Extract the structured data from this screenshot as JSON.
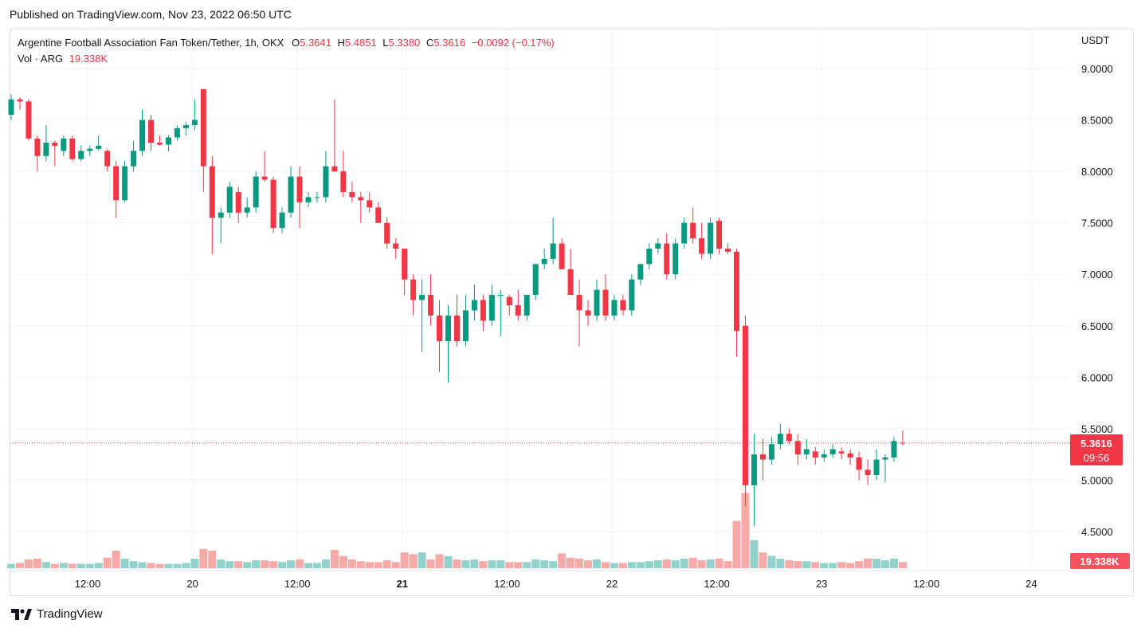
{
  "header": {
    "published": "Published on TradingView.com, Nov 23, 2022 06:50 UTC"
  },
  "legend": {
    "symbol": "Argentine Football Association Fan Token/Tether, 1h, OKX",
    "o_label": "O",
    "o_value": "5.3641",
    "h_label": "H",
    "h_value": "5.4851",
    "l_label": "L",
    "l_value": "5.3380",
    "c_label": "C",
    "c_value": "5.3616",
    "change": "−0.0092 (−0.17%)",
    "vol_label": "Vol · ARG",
    "vol_value": "19.338K"
  },
  "footer": {
    "brand": "TradingView"
  },
  "colors": {
    "up": "#089981",
    "down": "#f23645",
    "up_vol": "#92d2cc",
    "down_vol": "#f7a9a7",
    "grid": "#f0f3fa"
  },
  "chart_data": {
    "type": "candlestick",
    "currency": "USDT",
    "ylim": [
      4.2,
      9.3
    ],
    "y_ticks": [
      "9.0000",
      "8.5000",
      "8.0000",
      "7.5000",
      "7.0000",
      "6.5000",
      "6.0000",
      "5.5000",
      "5.0000",
      "4.5000"
    ],
    "x_ticks": [
      "12:00",
      "20",
      "12:00",
      "21",
      "12:00",
      "22",
      "12:00",
      "23",
      "12:00",
      "24"
    ],
    "last_price": "5.3616",
    "countdown": "09:56",
    "last_volume": "19.338K",
    "candles": [
      [
        8.55,
        8.75,
        8.5,
        8.7
      ],
      [
        8.7,
        8.72,
        8.6,
        8.68
      ],
      [
        8.68,
        8.7,
        8.3,
        8.32
      ],
      [
        8.32,
        8.35,
        8.0,
        8.15
      ],
      [
        8.15,
        8.45,
        8.1,
        8.28
      ],
      [
        8.28,
        8.3,
        8.05,
        8.25
      ],
      [
        8.2,
        8.35,
        8.15,
        8.32
      ],
      [
        8.32,
        8.35,
        8.1,
        8.12
      ],
      [
        8.12,
        8.25,
        8.1,
        8.2
      ],
      [
        8.2,
        8.25,
        8.15,
        8.22
      ],
      [
        8.22,
        8.35,
        8.2,
        8.25
      ],
      [
        8.2,
        8.22,
        8.0,
        8.05
      ],
      [
        8.05,
        8.1,
        7.55,
        7.72
      ],
      [
        7.72,
        8.1,
        7.7,
        8.05
      ],
      [
        8.05,
        8.3,
        8.0,
        8.2
      ],
      [
        8.2,
        8.6,
        8.15,
        8.5
      ],
      [
        8.5,
        8.55,
        8.2,
        8.28
      ],
      [
        8.28,
        8.35,
        8.25,
        8.26
      ],
      [
        8.26,
        8.35,
        8.2,
        8.33
      ],
      [
        8.33,
        8.45,
        8.3,
        8.42
      ],
      [
        8.42,
        8.48,
        8.35,
        8.45
      ],
      [
        8.45,
        8.7,
        8.4,
        8.5
      ],
      [
        8.8,
        8.8,
        7.8,
        8.05
      ],
      [
        8.05,
        8.15,
        7.2,
        7.55
      ],
      [
        7.55,
        7.65,
        7.3,
        7.6
      ],
      [
        7.6,
        7.9,
        7.55,
        7.85
      ],
      [
        7.8,
        7.85,
        7.5,
        7.6
      ],
      [
        7.6,
        7.75,
        7.55,
        7.65
      ],
      [
        7.65,
        8.0,
        7.6,
        7.95
      ],
      [
        7.95,
        8.2,
        7.9,
        7.92
      ],
      [
        7.92,
        7.95,
        7.4,
        7.45
      ],
      [
        7.45,
        7.65,
        7.4,
        7.6
      ],
      [
        7.6,
        8.05,
        7.55,
        7.95
      ],
      [
        7.95,
        8.05,
        7.45,
        7.7
      ],
      [
        7.7,
        7.8,
        7.65,
        7.75
      ],
      [
        7.75,
        7.8,
        7.7,
        7.75
      ],
      [
        7.75,
        8.2,
        7.7,
        8.05
      ],
      [
        8.05,
        8.7,
        8.0,
        8.0
      ],
      [
        8.0,
        8.2,
        7.75,
        7.8
      ],
      [
        7.8,
        7.9,
        7.7,
        7.75
      ],
      [
        7.75,
        7.8,
        7.5,
        7.72
      ],
      [
        7.72,
        7.8,
        7.6,
        7.65
      ],
      [
        7.65,
        7.7,
        7.5,
        7.5
      ],
      [
        7.5,
        7.55,
        7.25,
        7.3
      ],
      [
        7.3,
        7.35,
        7.15,
        7.25
      ],
      [
        7.25,
        7.25,
        6.8,
        6.95
      ],
      [
        6.95,
        7.0,
        6.6,
        6.75
      ],
      [
        6.75,
        6.95,
        6.25,
        6.8
      ],
      [
        6.8,
        7.0,
        6.5,
        6.6
      ],
      [
        6.6,
        6.75,
        6.05,
        6.35
      ],
      [
        6.35,
        6.7,
        5.95,
        6.6
      ],
      [
        6.6,
        6.8,
        6.3,
        6.35
      ],
      [
        6.35,
        6.8,
        6.3,
        6.65
      ],
      [
        6.65,
        6.9,
        6.55,
        6.75
      ],
      [
        6.75,
        6.8,
        6.45,
        6.55
      ],
      [
        6.55,
        6.9,
        6.5,
        6.8
      ],
      [
        6.8,
        6.85,
        6.4,
        6.8
      ],
      [
        6.78,
        6.8,
        6.6,
        6.7
      ],
      [
        6.7,
        6.85,
        6.55,
        6.6
      ],
      [
        6.6,
        6.8,
        6.55,
        6.8
      ],
      [
        6.8,
        7.1,
        6.75,
        7.1
      ],
      [
        7.1,
        7.25,
        7.05,
        7.15
      ],
      [
        7.15,
        7.55,
        7.1,
        7.3
      ],
      [
        7.3,
        7.35,
        7.05,
        7.05
      ],
      [
        7.05,
        7.25,
        6.8,
        6.8
      ],
      [
        6.8,
        6.95,
        6.3,
        6.65
      ],
      [
        6.65,
        6.75,
        6.5,
        6.6
      ],
      [
        6.6,
        6.95,
        6.55,
        6.85
      ],
      [
        6.85,
        7.0,
        6.55,
        6.6
      ],
      [
        6.6,
        6.8,
        6.55,
        6.75
      ],
      [
        6.75,
        6.8,
        6.6,
        6.65
      ],
      [
        6.65,
        7.0,
        6.6,
        6.95
      ],
      [
        6.95,
        7.1,
        6.9,
        7.1
      ],
      [
        7.1,
        7.3,
        7.05,
        7.25
      ],
      [
        7.25,
        7.35,
        7.2,
        7.3
      ],
      [
        7.3,
        7.4,
        6.95,
        7.0
      ],
      [
        7.0,
        7.35,
        6.95,
        7.3
      ],
      [
        7.3,
        7.55,
        7.25,
        7.5
      ],
      [
        7.5,
        7.65,
        7.3,
        7.35
      ],
      [
        7.35,
        7.5,
        7.15,
        7.2
      ],
      [
        7.2,
        7.55,
        7.15,
        7.5
      ],
      [
        7.52,
        7.55,
        7.2,
        7.25
      ],
      [
        7.25,
        7.3,
        7.2,
        7.22
      ],
      [
        7.22,
        7.25,
        6.2,
        6.45
      ],
      [
        6.5,
        6.6,
        4.75,
        4.95
      ],
      [
        4.95,
        5.45,
        4.55,
        5.25
      ],
      [
        5.25,
        5.4,
        5.0,
        5.2
      ],
      [
        5.2,
        5.42,
        5.15,
        5.35
      ],
      [
        5.35,
        5.55,
        5.3,
        5.45
      ],
      [
        5.45,
        5.5,
        5.35,
        5.38
      ],
      [
        5.38,
        5.45,
        5.15,
        5.25
      ],
      [
        5.25,
        5.4,
        5.2,
        5.3
      ],
      [
        5.28,
        5.32,
        5.15,
        5.22
      ],
      [
        5.22,
        5.3,
        5.18,
        5.25
      ],
      [
        5.25,
        5.35,
        5.22,
        5.3
      ],
      [
        5.28,
        5.32,
        5.2,
        5.26
      ],
      [
        5.26,
        5.3,
        5.15,
        5.22
      ],
      [
        5.22,
        5.28,
        5.0,
        5.1
      ],
      [
        5.1,
        5.2,
        4.95,
        5.05
      ],
      [
        5.05,
        5.3,
        5.0,
        5.2
      ],
      [
        5.2,
        5.25,
        4.98,
        5.22
      ],
      [
        5.22,
        5.42,
        5.18,
        5.38
      ],
      [
        5.3641,
        5.4851,
        5.338,
        5.3616
      ]
    ],
    "volumes": [
      0.25,
      0.3,
      0.5,
      0.55,
      0.35,
      0.25,
      0.3,
      0.25,
      0.25,
      0.25,
      0.3,
      0.6,
      1.0,
      0.55,
      0.4,
      0.35,
      0.3,
      0.25,
      0.25,
      0.25,
      0.3,
      0.55,
      1.1,
      1.0,
      0.5,
      0.4,
      0.4,
      0.35,
      0.45,
      0.45,
      0.4,
      0.35,
      0.45,
      0.5,
      0.3,
      0.3,
      0.5,
      1.05,
      0.7,
      0.5,
      0.4,
      0.35,
      0.35,
      0.45,
      0.35,
      0.9,
      0.8,
      0.9,
      0.5,
      0.8,
      0.7,
      0.5,
      0.45,
      0.5,
      0.4,
      0.45,
      0.45,
      0.35,
      0.35,
      0.35,
      0.5,
      0.45,
      0.4,
      0.85,
      0.6,
      0.55,
      0.45,
      0.5,
      0.35,
      0.3,
      0.3,
      0.35,
      0.35,
      0.4,
      0.45,
      0.5,
      0.45,
      0.55,
      0.6,
      0.45,
      0.5,
      0.55,
      0.4,
      2.7,
      4.3,
      1.6,
      0.9,
      0.7,
      0.55,
      0.45,
      0.4,
      0.4,
      0.35,
      0.3,
      0.3,
      0.35,
      0.3,
      0.4,
      0.55,
      0.55,
      0.45,
      0.55,
      0.35
    ]
  }
}
